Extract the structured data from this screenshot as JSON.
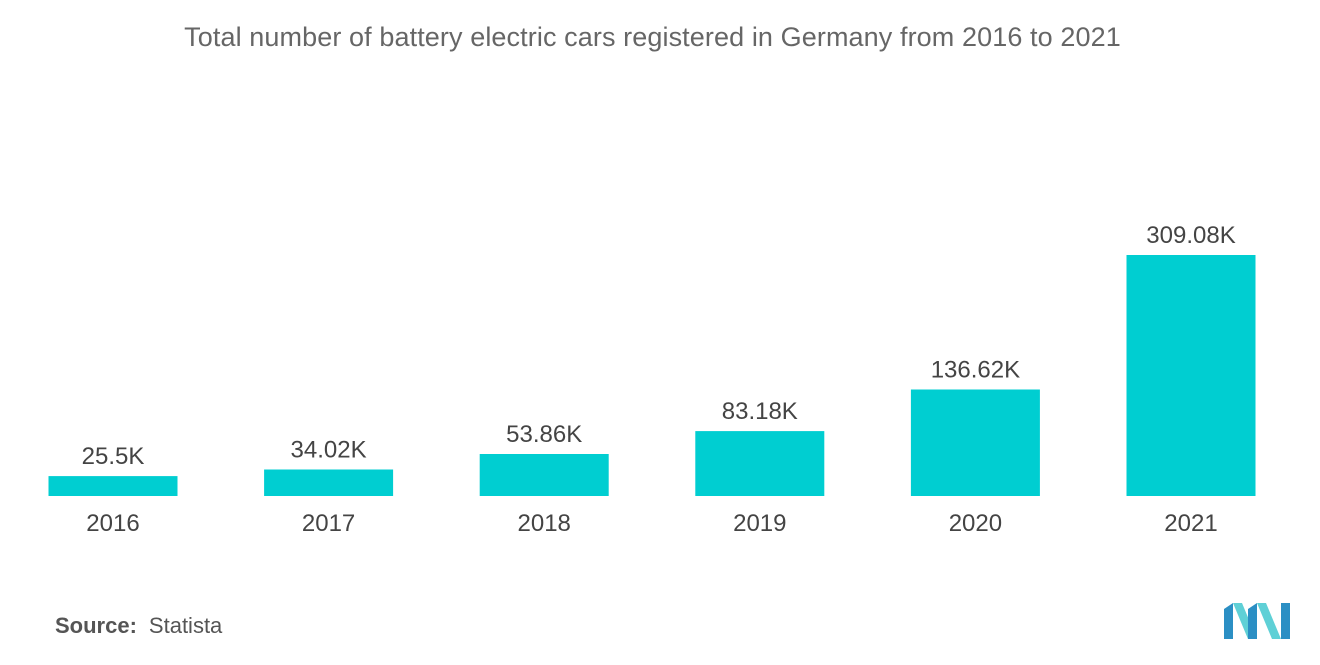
{
  "chart_data": {
    "type": "bar",
    "title": "Total number of battery electric cars registered in Germany from 2016 to 2021",
    "xlabel": "",
    "ylabel": "",
    "categories": [
      "2016",
      "2017",
      "2018",
      "2019",
      "2020",
      "2021"
    ],
    "values": [
      25.5,
      34.02,
      53.86,
      83.18,
      136.62,
      309.08
    ],
    "value_labels": [
      "25.5K",
      "34.02K",
      "53.86K",
      "83.18K",
      "136.62K",
      "309.08K"
    ],
    "unit": "K",
    "ylim": [
      0,
      309.08
    ],
    "grid": false,
    "legend": "none",
    "bar_color": "#00CED1"
  },
  "footer": {
    "source_label": "Source:",
    "source_value": "Statista"
  },
  "colors": {
    "accent": "#00CED1",
    "logo_dark": "#2B8FC4",
    "logo_light": "#5FD0D6",
    "text": "#444444"
  },
  "logo": {
    "icon": "mordor-intelligence-logo-icon"
  }
}
